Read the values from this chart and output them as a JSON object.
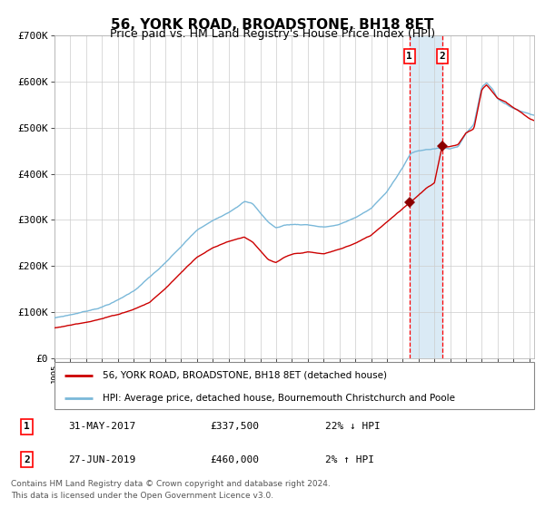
{
  "title": "56, YORK ROAD, BROADSTONE, BH18 8ET",
  "subtitle": "Price paid vs. HM Land Registry's House Price Index (HPI)",
  "legend_line1": "56, YORK ROAD, BROADSTONE, BH18 8ET (detached house)",
  "legend_line2": "HPI: Average price, detached house, Bournemouth Christchurch and Poole",
  "transaction1_date": "31-MAY-2017",
  "transaction1_price": 337500,
  "transaction1_label": "22% ↓ HPI",
  "transaction2_date": "27-JUN-2019",
  "transaction2_price": 460000,
  "transaction2_label": "2% ↑ HPI",
  "footnote1": "Contains HM Land Registry data © Crown copyright and database right 2024.",
  "footnote2": "This data is licensed under the Open Government Licence v3.0.",
  "hpi_color": "#7ab8d9",
  "price_color": "#cc0000",
  "marker_color": "#8b0000",
  "highlight_color": "#daeaf5",
  "dashed_color": "#ff0000",
  "grid_color": "#cccccc",
  "background_color": "#ffffff",
  "ylim": [
    0,
    700000
  ],
  "yticks": [
    0,
    100000,
    200000,
    300000,
    400000,
    500000,
    600000,
    700000
  ],
  "ytick_labels": [
    "£0",
    "£100K",
    "£200K",
    "£300K",
    "£400K",
    "£500K",
    "£600K",
    "£700K"
  ],
  "year_start": 1995,
  "year_end": 2025,
  "transaction1_year": 2017.42,
  "transaction2_year": 2019.49
}
